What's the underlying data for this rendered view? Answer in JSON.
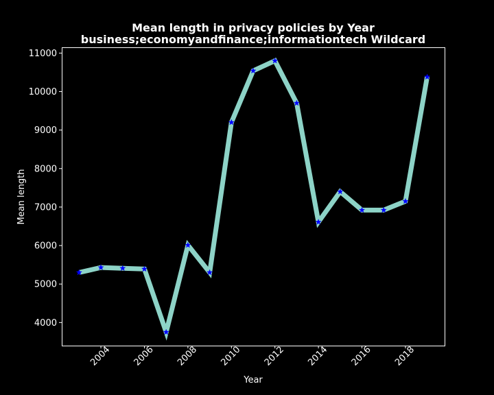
{
  "chart_data": {
    "type": "line",
    "title": "Mean length in privacy policies by Year",
    "subtitle": "business;economyandfinance;informationtech Wildcard",
    "xlabel": "Year",
    "ylabel": "Mean length",
    "x": [
      2003,
      2004,
      2005,
      2006,
      2007,
      2008,
      2009,
      2010,
      2011,
      2012,
      2013,
      2014,
      2015,
      2016,
      2017,
      2018,
      2019
    ],
    "series": [
      {
        "values": [
          5300,
          5430,
          5410,
          5390,
          3750,
          6010,
          5300,
          9200,
          10540,
          10800,
          9700,
          6610,
          7400,
          6920,
          6920,
          7150,
          10380
        ],
        "color": "#8dd3c7",
        "marker": "star",
        "marker_color": "#0000ff"
      }
    ],
    "xticks": [
      "2004",
      "2006",
      "2008",
      "2010",
      "2012",
      "2014",
      "2016",
      "2018"
    ],
    "yticks": [
      "4000",
      "5000",
      "6000",
      "7000",
      "8000",
      "9000",
      "10000",
      "11000"
    ],
    "xlim": [
      2002.2,
      2019.8
    ],
    "ylim": [
      3400,
      11150
    ],
    "grid": false,
    "background": "#000000",
    "foreground": "#ffffff"
  }
}
